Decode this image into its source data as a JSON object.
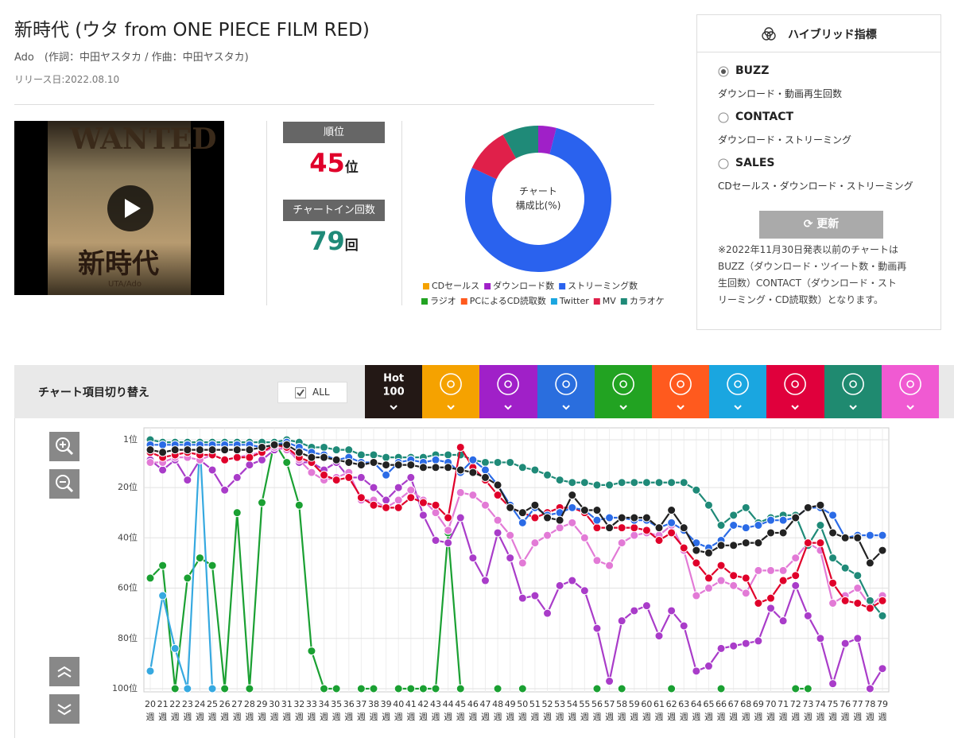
{
  "header": {
    "title": "新時代 (ウタ from ONE PIECE FILM RED)",
    "artist": "Ado　(作詞：中田ヤスタカ / 作曲：中田ヤスタカ)",
    "release": "リリース日:2022.08.10"
  },
  "thumbnail": {
    "top": "WANTED",
    "middle": "新時代",
    "bottom": "UTA/Ado"
  },
  "rank": {
    "label": "順位",
    "value": 45,
    "unit": "位"
  },
  "chart_in": {
    "label": "チャートイン回数",
    "value": 79,
    "unit": "回"
  },
  "composition": {
    "type": "donut",
    "center_lines": [
      "チャート",
      "構成比(%)"
    ],
    "series": [
      {
        "name": "CDセールス",
        "color": "#f5a200",
        "value": 0
      },
      {
        "name": "ダウンロード数",
        "color": "#a020c8",
        "value": 4
      },
      {
        "name": "ストリーミング数",
        "color": "#2a62ee",
        "value": 78
      },
      {
        "name": "ラジオ",
        "color": "#22a322",
        "value": 0
      },
      {
        "name": "PCによるCD読取数",
        "color": "#ff5a1e",
        "value": 0
      },
      {
        "name": "Twitter",
        "color": "#1aa6e0",
        "value": 0
      },
      {
        "name": "MV",
        "color": "#e0204a",
        "value": 10
      },
      {
        "name": "カラオケ",
        "color": "#1f8a78",
        "value": 8
      }
    ]
  },
  "hybrid_panel": {
    "title": "ハイブリッド指標",
    "options": [
      {
        "label": "BUZZ",
        "description": "ダウンロード・動画再生回数",
        "selected": true
      },
      {
        "label": "CONTACT",
        "description": "ダウンロード・ストリーミング",
        "selected": false
      },
      {
        "label": "SALES",
        "description": "CDセールス・ダウンロード・ストリーミング",
        "selected": false
      }
    ],
    "button": "更新",
    "note_lines": [
      "※2022年11月30日発表以前のチャートは",
      "BUZZ（ダウンロード・ツイート数・動画再",
      "生回数）CONTACT（ダウンロード・スト",
      "リーミング・CD読取数）となります。"
    ]
  },
  "toolbar": {
    "label": "チャート項目切り替え",
    "all": "ALL",
    "first_tab_lines": [
      "Hot",
      "100"
    ],
    "tab_colors": [
      "#231815",
      "#f5a200",
      "#a020c8",
      "#2a6ede",
      "#22a322",
      "#ff5a1e",
      "#1aa6e0",
      "#e0003c",
      "#1f8a70",
      "#f05ad2"
    ]
  },
  "chart_data": {
    "type": "line",
    "categories": [
      "20",
      "21",
      "22",
      "23",
      "24",
      "25",
      "26",
      "27",
      "28",
      "29",
      "30",
      "31",
      "32",
      "33",
      "34",
      "35",
      "36",
      "37",
      "38",
      "39",
      "40",
      "41",
      "42",
      "43",
      "44",
      "45",
      "46",
      "47",
      "48",
      "49",
      "50",
      "51",
      "52",
      "53",
      "54",
      "55",
      "56",
      "57",
      "58",
      "59",
      "60",
      "61",
      "62",
      "63",
      "64",
      "65",
      "66",
      "67",
      "68",
      "69",
      "70",
      "71",
      "72",
      "73",
      "74",
      "75",
      "76",
      "77",
      "78",
      "79"
    ],
    "x_unit": "週",
    "ylim": [
      1,
      100
    ],
    "y_inverted": true,
    "yticks": [
      {
        "value": 1,
        "label": "1位"
      },
      {
        "value": 20,
        "label": "20位"
      },
      {
        "value": 40,
        "label": "40位"
      },
      {
        "value": 60,
        "label": "60位"
      },
      {
        "value": 80,
        "label": "80位"
      },
      {
        "value": 100,
        "label": "100位"
      }
    ],
    "grid": true,
    "series": [
      {
        "color": "#1aa032",
        "values": [
          56,
          51,
          100,
          56,
          48,
          51,
          100,
          30,
          100,
          26,
          2,
          10,
          27,
          85,
          100,
          100,
          null,
          100,
          100,
          null,
          100,
          100,
          100,
          100,
          38,
          100,
          null,
          null,
          100,
          null,
          100,
          null,
          null,
          null,
          null,
          null,
          100,
          null,
          100,
          null,
          null,
          null,
          100,
          null,
          null,
          null,
          100,
          null,
          null,
          null,
          null,
          null,
          100,
          100,
          null,
          null,
          null,
          null,
          null,
          null
        ]
      },
      {
        "color": "#36a9e0",
        "values": [
          93,
          63,
          84,
          100,
          2,
          100,
          null,
          null,
          null,
          null,
          null,
          null,
          null,
          null,
          null,
          null,
          null,
          null,
          null,
          null,
          null,
          null,
          null,
          null,
          null,
          null,
          null,
          null,
          null,
          null,
          null,
          null,
          null,
          null,
          null,
          null,
          null,
          null,
          null,
          null,
          null,
          null,
          null,
          null,
          null,
          null,
          null,
          null,
          null,
          null,
          null,
          null,
          null,
          null,
          null,
          null,
          null,
          null,
          null,
          null
        ]
      },
      {
        "color": "#a93cc9",
        "values": [
          9,
          13,
          9,
          17,
          9,
          13,
          21,
          16,
          11,
          9,
          5,
          4,
          10,
          10,
          13,
          10,
          16,
          16,
          20,
          25,
          20,
          16,
          31,
          41,
          42,
          32,
          48,
          57,
          38,
          48,
          64,
          63,
          70,
          59,
          57,
          61,
          76,
          97,
          73,
          69,
          67,
          79,
          69,
          75,
          93,
          91,
          84,
          83,
          82,
          81,
          68,
          73,
          59,
          71,
          80,
          98,
          82,
          80,
          100,
          92
        ]
      },
      {
        "color": "#e27ad6",
        "values": [
          10,
          10,
          8,
          8,
          9,
          7,
          9,
          8,
          7,
          6,
          4,
          5,
          9,
          14,
          17,
          16,
          14,
          25,
          25,
          28,
          25,
          21,
          25,
          30,
          37,
          22,
          23,
          27,
          33,
          39,
          50,
          42,
          39,
          36,
          34,
          40,
          49,
          51,
          42,
          39,
          38,
          39,
          35,
          45,
          63,
          60,
          57,
          59,
          62,
          53,
          53,
          53,
          48,
          42,
          45,
          66,
          63,
          60,
          67,
          63
        ]
      },
      {
        "color": "#1f8a78",
        "values": [
          1,
          2,
          2,
          2,
          2,
          2,
          2,
          2,
          2,
          2,
          2,
          1,
          2,
          4,
          4,
          5,
          5,
          7,
          7,
          8,
          8,
          8,
          8,
          7,
          7,
          7,
          9,
          10,
          10,
          10,
          12,
          13,
          15,
          17,
          18,
          18,
          19,
          19,
          18,
          18,
          18,
          18,
          18,
          18,
          21,
          27,
          35,
          31,
          28,
          34,
          32,
          31,
          31,
          43,
          35,
          48,
          52,
          55,
          65,
          71
        ]
      },
      {
        "color": "#e0002a",
        "values": [
          6,
          8,
          7,
          6,
          7,
          7,
          9,
          8,
          8,
          6,
          3,
          4,
          8,
          10,
          15,
          17,
          16,
          24,
          27,
          28,
          28,
          24,
          26,
          27,
          32,
          4,
          12,
          17,
          23,
          28,
          30,
          32,
          30,
          28,
          28,
          30,
          36,
          36,
          36,
          36,
          37,
          41,
          38,
          44,
          50,
          56,
          51,
          55,
          56,
          66,
          64,
          57,
          55,
          42,
          42,
          58,
          65,
          66,
          68,
          65
        ]
      },
      {
        "color": "#2b6be6",
        "values": [
          3,
          3,
          3,
          3,
          3,
          3,
          3,
          3,
          3,
          4,
          3,
          2,
          4,
          6,
          7,
          9,
          8,
          10,
          10,
          15,
          10,
          9,
          10,
          9,
          10,
          14,
          9,
          13,
          19,
          27,
          34,
          28,
          31,
          30,
          28,
          29,
          33,
          32,
          32,
          33,
          33,
          36,
          34,
          37,
          42,
          44,
          41,
          35,
          36,
          35,
          33,
          33,
          32,
          28,
          28,
          31,
          40,
          39,
          39,
          39
        ]
      },
      {
        "color": "#222222",
        "values": [
          5,
          6,
          5,
          5,
          5,
          5,
          5,
          5,
          5,
          4,
          3,
          3,
          6,
          8,
          8,
          9,
          10,
          11,
          10,
          11,
          11,
          11,
          12,
          12,
          12,
          13,
          14,
          16,
          19,
          28,
          30,
          27,
          32,
          33,
          23,
          29,
          29,
          36,
          32,
          32,
          32,
          36,
          29,
          36,
          45,
          46,
          43,
          43,
          42,
          42,
          38,
          38,
          32,
          28,
          27,
          38,
          40,
          40,
          50,
          45
        ]
      }
    ]
  }
}
